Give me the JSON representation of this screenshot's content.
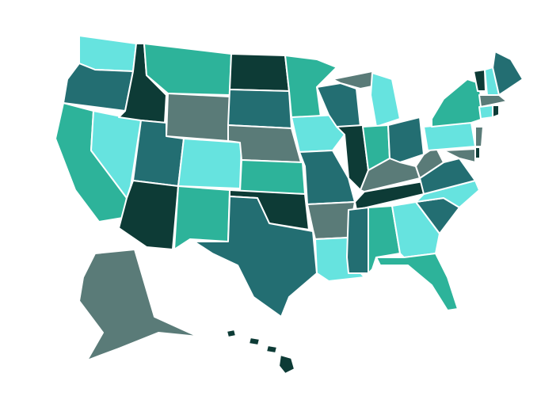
{
  "map": {
    "palette": [
      "#0d3b36",
      "#236e72",
      "#5a7b78",
      "#2db39a",
      "#66e3df"
    ],
    "border_color": "#ffffff"
  }
}
